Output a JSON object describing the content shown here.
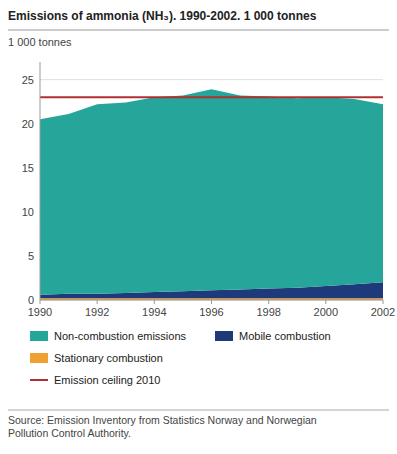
{
  "chart_data": {
    "type": "area",
    "stacked": true,
    "title": "Emissions of ammonia (NH₃). 1990-2002. 1 000 tonnes",
    "y_label": "1 000 tonnes",
    "x": [
      1990,
      1991,
      1992,
      1993,
      1994,
      1995,
      1996,
      1997,
      1998,
      1999,
      2000,
      2001,
      2002
    ],
    "series": [
      {
        "name": "Stationary combustion",
        "color": "#f0a030",
        "values": [
          0.2,
          0.2,
          0.2,
          0.2,
          0.2,
          0.2,
          0.2,
          0.2,
          0.2,
          0.2,
          0.2,
          0.2,
          0.2
        ]
      },
      {
        "name": "Mobile combustion",
        "color": "#1e3a7a",
        "values": [
          0.4,
          0.5,
          0.5,
          0.6,
          0.7,
          0.8,
          0.9,
          1.0,
          1.1,
          1.2,
          1.4,
          1.6,
          1.8
        ]
      },
      {
        "name": "Non-combustion emissions",
        "color": "#26a69a",
        "values": [
          19.9,
          20.4,
          21.5,
          21.6,
          22.1,
          22.2,
          22.8,
          22.0,
          21.8,
          21.5,
          21.4,
          21.0,
          20.2
        ]
      }
    ],
    "ceiling": {
      "name": "Emission ceiling 2010",
      "value": 23.0,
      "color": "#b03030"
    },
    "xlim": [
      1990,
      2002
    ],
    "xticks": [
      1990,
      1992,
      1994,
      1996,
      1998,
      2000,
      2002
    ],
    "ylim": [
      0,
      27
    ],
    "yticks": [
      0,
      5,
      10,
      15,
      20,
      25
    ],
    "grid": true,
    "source": "Source: Emission Inventory from Statistics Norway and Norwegian\nPollution Control Authority."
  }
}
